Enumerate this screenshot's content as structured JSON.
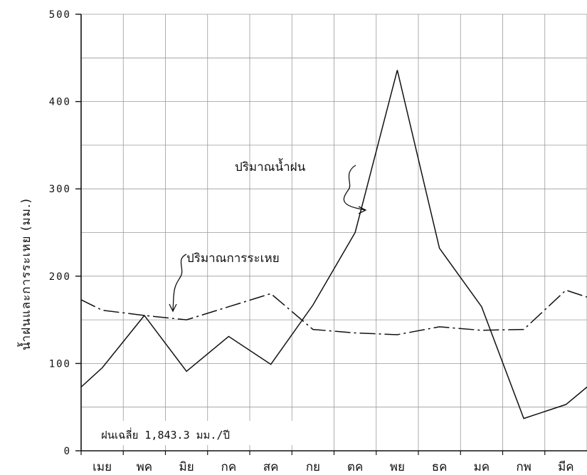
{
  "chart_data": {
    "type": "line",
    "ylabel": "น้ำฝนและการระเหย  (มม.)",
    "categories": [
      "เมย",
      "พค",
      "มิย",
      "กค",
      "สค",
      "กย",
      "ตค",
      "พย",
      "ธค",
      "มค",
      "กพ",
      "มีค"
    ],
    "ylim": [
      0,
      500
    ],
    "yticks": [
      0,
      100,
      200,
      300,
      400,
      500
    ],
    "grid": true,
    "x": [
      0,
      0.5,
      1.5,
      2.5,
      3.5,
      4.5,
      5.5,
      6.5,
      7.5,
      8.5,
      9.5,
      10.5,
      11.5,
      12
    ],
    "series": [
      {
        "name": "ปริมาณน้ำฝน",
        "style": "solid",
        "values": [
          73,
          95,
          155,
          91,
          131,
          99,
          167,
          250,
          436,
          232,
          165,
          37,
          53,
          73
        ]
      },
      {
        "name": "ปริมาณการระเหย",
        "style": "dashdot",
        "values": [
          173,
          161,
          155,
          150,
          165,
          180,
          139,
          135,
          133,
          142,
          138,
          139,
          184,
          176
        ]
      }
    ],
    "annotations": {
      "rain_label": "ปริมาณน้ำฝน",
      "evap_label": "ปริมาณการระเหย",
      "note": "ฝนเฉลี่ย 1,843.3 มม./ปี"
    },
    "colors": {
      "line": "#111111",
      "grid": "#9a9a9a",
      "axis": "#111111"
    }
  }
}
